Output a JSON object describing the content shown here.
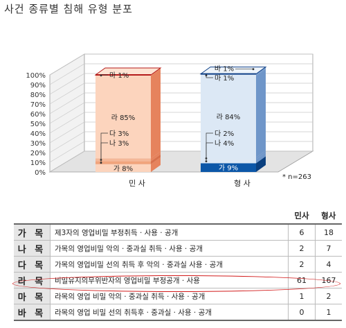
{
  "title": "사건 종류별 침해 유형 분포",
  "chart_data": {
    "type": "bar",
    "stacked": true,
    "ylim": [
      0,
      100
    ],
    "yticks": [
      "0%",
      "10%",
      "20%",
      "30%",
      "40%",
      "50%",
      "60%",
      "70%",
      "80%",
      "90%",
      "100%"
    ],
    "categories": [
      "민 사",
      "형 사"
    ],
    "stack_order": [
      "가",
      "나",
      "다",
      "라",
      "마",
      "바"
    ],
    "bars": [
      {
        "name": "민 사",
        "colors": {
          "face": "#fcd4bd",
          "side": "#e6835d",
          "top": "#fde3d3",
          "cap": "#b51a1a",
          "accent": "#f1a47c",
          "accent_side": "#d8704b"
        },
        "segments": [
          {
            "key": "가",
            "value": 8,
            "label": "가 8%"
          },
          {
            "key": "나",
            "value": 3,
            "label": "나 3%"
          },
          {
            "key": "다",
            "value": 3,
            "label": "다 3%"
          },
          {
            "key": "라",
            "value": 85,
            "label": "라 85%"
          },
          {
            "key": "마",
            "value": 1,
            "label": "마 1%"
          }
        ]
      },
      {
        "name": "형 사",
        "colors": {
          "face": "#dce8f5",
          "side": "#6f96c9",
          "top": "#eef4fa",
          "cap": "#0e3f86",
          "accent": "#0c57a8",
          "accent_side": "#0a3f7e"
        },
        "segments": [
          {
            "key": "가",
            "value": 9,
            "label": "가 9%"
          },
          {
            "key": "나",
            "value": 4,
            "label": "나 4%"
          },
          {
            "key": "다",
            "value": 2,
            "label": "다 2%"
          },
          {
            "key": "라",
            "value": 84,
            "label": "라 84%"
          },
          {
            "key": "마",
            "value": 1,
            "label": "마 1%"
          },
          {
            "key": "바",
            "value": 1,
            "label": "바 1%"
          }
        ]
      }
    ],
    "note": "* n=263"
  },
  "table": {
    "headers": [
      "민사",
      "형사"
    ],
    "rows": [
      {
        "label": "가 목",
        "desc": "제3자의 영업비밀 부정취득 · 사용 · 공개",
        "civil": "6",
        "criminal": "18"
      },
      {
        "label": "나 목",
        "desc": "가목의 영업비밀 악의 · 중과실 취득 · 사용 · 공개",
        "civil": "2",
        "criminal": "7"
      },
      {
        "label": "다 목",
        "desc": "가목의 영업비밀 선의 취득 후 악의 · 중과실 사용 · 공개",
        "civil": "2",
        "criminal": "4"
      },
      {
        "label": "라 목",
        "desc": "비밀유지의무위반자의 영업비밀 부정공개 · 사용",
        "civil": "61",
        "criminal": "167"
      },
      {
        "label": "마 목",
        "desc": "라목의 영업 비밀 악의 · 중과실 취득 · 사용 · 공개",
        "civil": "1",
        "criminal": "2"
      },
      {
        "label": "바 목",
        "desc": "라목의 영업 비밀 선의 취득후 · 중과실 · 사용 · 공개",
        "civil": "0",
        "criminal": "1"
      }
    ],
    "highlight_row": 3
  }
}
